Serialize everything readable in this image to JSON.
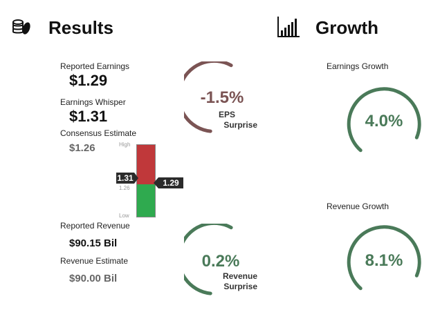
{
  "results": {
    "title": "Results",
    "reported_earnings_label": "Reported Earnings",
    "reported_earnings_value": "$1.29",
    "earnings_whisper_label": "Earnings Whisper",
    "earnings_whisper_value": "$1.31",
    "consensus_label": "Consensus Estimate",
    "consensus_value": "$1.26",
    "reported_revenue_label": "Reported Revenue",
    "reported_revenue_value": "$90.15 Bil",
    "revenue_estimate_label": "Revenue Estimate",
    "revenue_estimate_value": "$90.00 Bil"
  },
  "range_bar": {
    "high_label": "High",
    "low_label": "Low",
    "whisper_pointer": "1.31",
    "reported_pointer": "1.29",
    "consensus_tick": "1.26"
  },
  "eps_surprise": {
    "value": "-1.5%",
    "line1": "EPS",
    "line2": "Surprise",
    "color": "#7b5454"
  },
  "revenue_surprise": {
    "value": "0.2%",
    "line1": "Revenue",
    "line2": "Surprise",
    "color": "#4a7a59"
  },
  "growth": {
    "title": "Growth",
    "earnings_growth_label": "Earnings Growth",
    "earnings_growth_value": "4.0%",
    "revenue_growth_label": "Revenue Growth",
    "revenue_growth_value": "8.1%",
    "color": "#4a7a59"
  },
  "icons": {
    "results": "coins-icon",
    "growth": "bar-chart-icon"
  }
}
